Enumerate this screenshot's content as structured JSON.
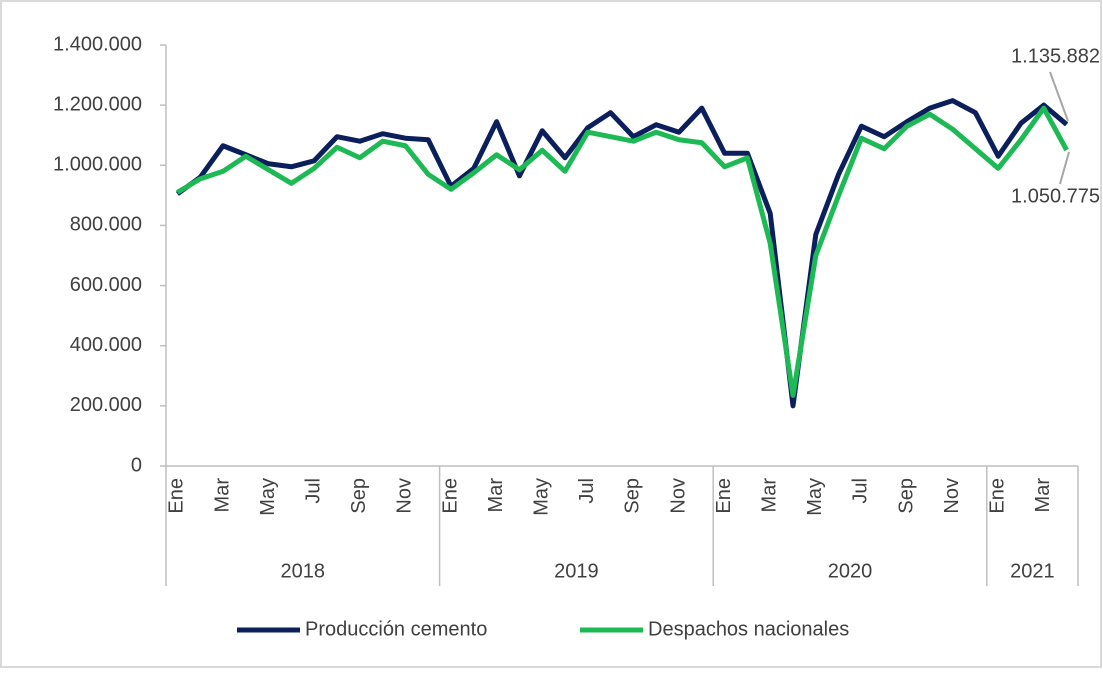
{
  "chart_data": {
    "type": "line",
    "categories": [
      "Ene",
      null,
      "Mar",
      null,
      "May",
      null,
      "Jul",
      null,
      "Sep",
      null,
      "Nov",
      null,
      "Ene",
      null,
      "Mar",
      null,
      "May",
      null,
      "Jul",
      null,
      "Sep",
      null,
      "Nov",
      null,
      "Ene",
      null,
      "Mar",
      null,
      "May",
      null,
      "Jul",
      null,
      "Sep",
      null,
      "Nov",
      null,
      "Ene",
      null,
      "Mar",
      null
    ],
    "groups": [
      "2018",
      "2019",
      "2020",
      "2021"
    ],
    "series": [
      {
        "name": "Producción cemento",
        "color": "#0b1f5c",
        "values": [
          905000,
          960000,
          1065000,
          1035000,
          1005000,
          995000,
          1015000,
          1095000,
          1080000,
          1105000,
          1090000,
          1085000,
          930000,
          990000,
          1145000,
          965000,
          1115000,
          1025000,
          1125000,
          1175000,
          1095000,
          1135000,
          1110000,
          1190000,
          1040000,
          1040000,
          840000,
          200000,
          770000,
          970000,
          1130000,
          1095000,
          1145000,
          1190000,
          1215000,
          1175000,
          1030000,
          1140000,
          1200000,
          1135882
        ],
        "value_labels": [
          null,
          null,
          null,
          null,
          null,
          null,
          null,
          null,
          null,
          null,
          null,
          null,
          null,
          null,
          null,
          null,
          null,
          null,
          null,
          null,
          null,
          null,
          null,
          null,
          null,
          null,
          null,
          null,
          null,
          null,
          null,
          null,
          null,
          null,
          null,
          null,
          null,
          null,
          null,
          "1.135.882"
        ]
      },
      {
        "name": "Despachos nacionales",
        "color": "#1db954",
        "values": [
          910000,
          955000,
          980000,
          1030000,
          985000,
          940000,
          990000,
          1060000,
          1025000,
          1080000,
          1065000,
          970000,
          920000,
          975000,
          1035000,
          985000,
          1050000,
          980000,
          1110000,
          1095000,
          1080000,
          1110000,
          1085000,
          1075000,
          995000,
          1025000,
          740000,
          235000,
          700000,
          900000,
          1090000,
          1055000,
          1130000,
          1170000,
          1120000,
          1055000,
          990000,
          1085000,
          1190000,
          1050775
        ],
        "value_labels": [
          null,
          null,
          null,
          null,
          null,
          null,
          null,
          null,
          null,
          null,
          null,
          null,
          null,
          null,
          null,
          null,
          null,
          null,
          null,
          null,
          null,
          null,
          null,
          null,
          null,
          null,
          null,
          null,
          null,
          null,
          null,
          null,
          null,
          null,
          null,
          null,
          null,
          null,
          null,
          "1.050.775"
        ]
      }
    ],
    "ylim": [
      0,
      1400000
    ],
    "yticks": [
      0,
      {
        "value": 200000,
        "label": "200.000"
      },
      {
        "value": 400000,
        "label": "400.000"
      },
      {
        "value": 600000,
        "label": "600.000"
      },
      {
        "value": 800000,
        "label": "800.000"
      },
      {
        "value": 1000000,
        "label": "1.000.000"
      },
      {
        "value": 1200000,
        "label": "1.200.000"
      },
      {
        "value": 1400000,
        "label": "1.400.000"
      }
    ],
    "grid": false,
    "legend": "bottom"
  }
}
